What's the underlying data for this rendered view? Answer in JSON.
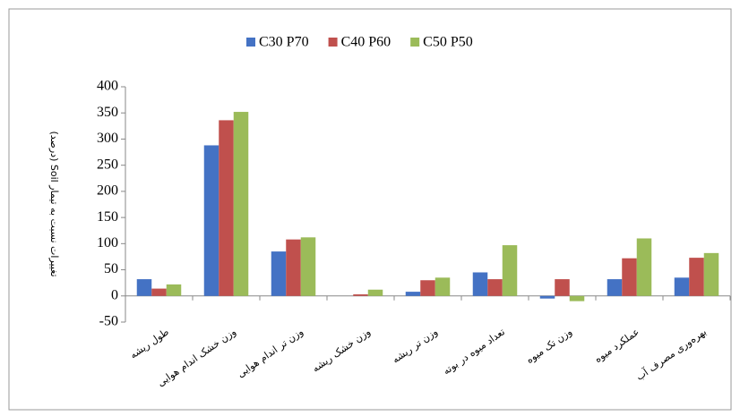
{
  "chart_data": {
    "type": "bar",
    "ylabel": "تغییرات نسبت به تیمار Soil (درصد)",
    "categories": [
      "طول ریشه",
      "وزن خشک اندام هوایی",
      "وزن تر اندام هوایی",
      "وزن خشک ریشه",
      "وزن تر ریشه",
      "تعداد میوه در بوته",
      "وزن تک میوه",
      "عملکرد میوه",
      "بهره‌وری مصرف آب"
    ],
    "series": [
      {
        "name": "C30 P70",
        "color": "#4472c4",
        "values": [
          32,
          288,
          85,
          0,
          8,
          45,
          -5,
          32,
          35
        ]
      },
      {
        "name": "C40 P60",
        "color": "#c0504d",
        "values": [
          14,
          336,
          108,
          3,
          30,
          32,
          32,
          72,
          73
        ]
      },
      {
        "name": "C50 P50",
        "color": "#9bbb59",
        "values": [
          22,
          352,
          112,
          12,
          35,
          97,
          -10,
          110,
          82
        ]
      }
    ],
    "ylim": [
      -50,
      400
    ],
    "yticks": [
      -50,
      0,
      50,
      100,
      150,
      200,
      250,
      300,
      350,
      400
    ],
    "legend": "top",
    "grid": false
  }
}
